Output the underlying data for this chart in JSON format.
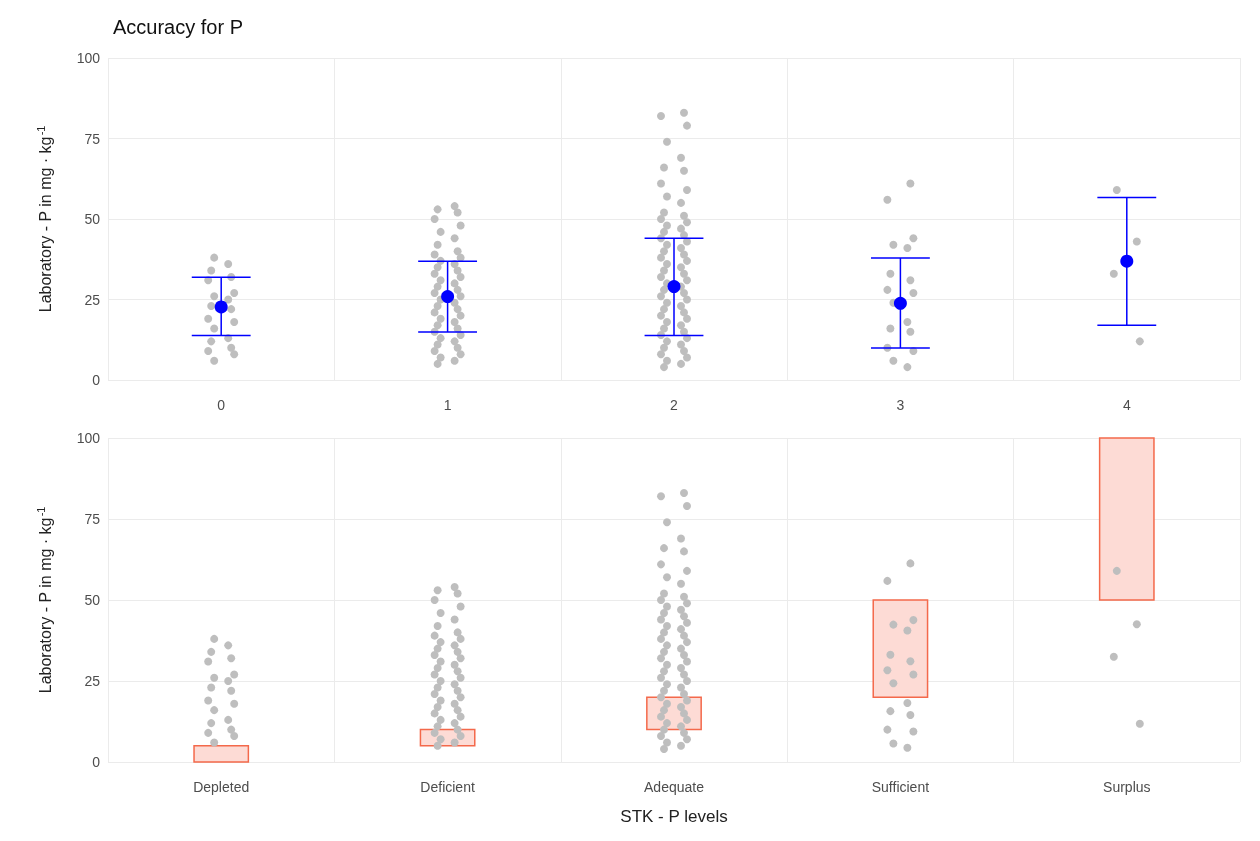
{
  "chart_data": [
    {
      "type": "scatter",
      "title": "Accuracy for P",
      "ylabel": "Laboratory - P in mg · kg$^{-1}$",
      "categories": [
        "0",
        "1",
        "2",
        "3",
        "4"
      ],
      "ylim": [
        0,
        100
      ],
      "yticks": [
        0,
        25,
        50,
        75,
        100
      ],
      "grid": true,
      "marker": "circle",
      "series": [
        {
          "color": "#bebebe",
          "x": [
            "0",
            "0",
            "0",
            "0",
            "0",
            "0",
            "0",
            "0",
            "0",
            "0",
            "0",
            "0",
            "0",
            "0",
            "0",
            "0",
            "0",
            "0",
            "0",
            "1",
            "1",
            "1",
            "1",
            "1",
            "1",
            "1",
            "1",
            "1",
            "1",
            "1",
            "1",
            "1",
            "1",
            "1",
            "1",
            "1",
            "1",
            "1",
            "1",
            "1",
            "1",
            "1",
            "1",
            "1",
            "1",
            "1",
            "1",
            "1",
            "1",
            "1",
            "1",
            "1",
            "1",
            "1",
            "1",
            "1",
            "1",
            "1",
            "1",
            "1",
            "1",
            "1",
            "1",
            "2",
            "2",
            "2",
            "2",
            "2",
            "2",
            "2",
            "2",
            "2",
            "2",
            "2",
            "2",
            "2",
            "2",
            "2",
            "2",
            "2",
            "2",
            "2",
            "2",
            "2",
            "2",
            "2",
            "2",
            "2",
            "2",
            "2",
            "2",
            "2",
            "2",
            "2",
            "2",
            "2",
            "2",
            "2",
            "2",
            "2",
            "2",
            "2",
            "2",
            "2",
            "2",
            "2",
            "2",
            "2",
            "2",
            "2",
            "2",
            "2",
            "2",
            "2",
            "2",
            "2",
            "2",
            "2",
            "2",
            "2",
            "2",
            "2",
            "2",
            "3",
            "3",
            "3",
            "3",
            "3",
            "3",
            "3",
            "3",
            "3",
            "3",
            "3",
            "3",
            "3",
            "3",
            "3",
            "3",
            "3",
            "4",
            "4",
            "4",
            "4"
          ],
          "values": [
            38,
            36,
            34,
            32,
            31,
            27,
            26,
            25,
            23,
            22,
            19,
            18,
            16,
            13,
            12,
            10,
            9,
            8,
            6,
            54,
            53,
            52,
            50,
            48,
            46,
            44,
            42,
            40,
            39,
            38,
            37,
            36,
            35,
            34,
            33,
            32,
            31,
            30,
            29,
            28,
            27,
            26,
            25,
            24,
            23,
            22,
            21,
            20,
            19,
            18,
            17,
            16,
            15,
            14,
            13,
            12,
            11,
            10,
            9,
            8,
            7,
            6,
            5,
            83,
            82,
            79,
            74,
            69,
            66,
            65,
            61,
            59,
            57,
            55,
            52,
            51,
            50,
            49,
            48,
            47,
            46,
            45,
            44,
            43,
            42,
            41,
            40,
            39,
            38,
            37,
            36,
            35,
            34,
            33,
            32,
            31,
            30,
            29,
            28,
            27,
            26,
            25,
            24,
            23,
            22,
            21,
            20,
            19,
            18,
            17,
            16,
            15,
            14,
            13,
            12,
            11,
            10,
            9,
            8,
            7,
            6,
            5,
            4,
            61,
            56,
            44,
            42,
            41,
            33,
            31,
            28,
            27,
            24,
            18,
            16,
            15,
            10,
            9,
            6,
            4,
            59,
            43,
            33,
            12
          ]
        },
        {
          "color": "#0000ff",
          "values": [
            22.7,
            25.9,
            29,
            23.8,
            36.9
          ],
          "errors": [
            [
              13.8,
              31.9
            ],
            [
              14.9,
              36.9
            ],
            [
              13.8,
              44
            ],
            [
              9.9,
              37.9
            ],
            [
              17,
              56.7
            ]
          ]
        }
      ]
    },
    {
      "type": "bar",
      "xlabel": "STK - P levels",
      "ylabel": "Laboratory - P in mg · kg$^{-1}$",
      "categories": [
        "Depleted",
        "Deficient",
        "Adequate",
        "Sufficient",
        "Surplus"
      ],
      "ylim": [
        0,
        100
      ],
      "yticks": [
        0,
        25,
        50,
        75,
        100
      ],
      "grid": true,
      "series": [
        {
          "color": "#fddbd5",
          "base": [
            0,
            5,
            10,
            20,
            50
          ],
          "values": [
            5,
            5,
            10,
            30,
            50
          ]
        },
        {
          "type": "scatter",
          "color": "#bebebe",
          "x": [
            "Depleted",
            "Depleted",
            "Depleted",
            "Depleted",
            "Depleted",
            "Depleted",
            "Depleted",
            "Depleted",
            "Depleted",
            "Depleted",
            "Depleted",
            "Depleted",
            "Depleted",
            "Depleted",
            "Depleted",
            "Depleted",
            "Depleted",
            "Depleted",
            "Depleted",
            "Deficient",
            "Deficient",
            "Deficient",
            "Deficient",
            "Deficient",
            "Deficient",
            "Deficient",
            "Deficient",
            "Deficient",
            "Deficient",
            "Deficient",
            "Deficient",
            "Deficient",
            "Deficient",
            "Deficient",
            "Deficient",
            "Deficient",
            "Deficient",
            "Deficient",
            "Deficient",
            "Deficient",
            "Deficient",
            "Deficient",
            "Deficient",
            "Deficient",
            "Deficient",
            "Deficient",
            "Deficient",
            "Deficient",
            "Deficient",
            "Deficient",
            "Deficient",
            "Deficient",
            "Deficient",
            "Deficient",
            "Deficient",
            "Deficient",
            "Deficient",
            "Deficient",
            "Deficient",
            "Deficient",
            "Deficient",
            "Deficient",
            "Deficient",
            "Adequate",
            "Adequate",
            "Adequate",
            "Adequate",
            "Adequate",
            "Adequate",
            "Adequate",
            "Adequate",
            "Adequate",
            "Adequate",
            "Adequate",
            "Adequate",
            "Adequate",
            "Adequate",
            "Adequate",
            "Adequate",
            "Adequate",
            "Adequate",
            "Adequate",
            "Adequate",
            "Adequate",
            "Adequate",
            "Adequate",
            "Adequate",
            "Adequate",
            "Adequate",
            "Adequate",
            "Adequate",
            "Adequate",
            "Adequate",
            "Adequate",
            "Adequate",
            "Adequate",
            "Adequate",
            "Adequate",
            "Adequate",
            "Adequate",
            "Adequate",
            "Adequate",
            "Adequate",
            "Adequate",
            "Adequate",
            "Adequate",
            "Adequate",
            "Adequate",
            "Adequate",
            "Adequate",
            "Adequate",
            "Adequate",
            "Adequate",
            "Adequate",
            "Adequate",
            "Adequate",
            "Adequate",
            "Adequate",
            "Adequate",
            "Adequate",
            "Adequate",
            "Adequate",
            "Adequate",
            "Sufficient",
            "Sufficient",
            "Sufficient",
            "Sufficient",
            "Sufficient",
            "Sufficient",
            "Sufficient",
            "Sufficient",
            "Sufficient",
            "Sufficient",
            "Sufficient",
            "Sufficient",
            "Sufficient",
            "Sufficient",
            "Sufficient",
            "Sufficient",
            "Sufficient",
            "Surplus",
            "Surplus",
            "Surplus",
            "Surplus"
          ],
          "values": [
            38,
            36,
            34,
            32,
            31,
            27,
            26,
            25,
            23,
            22,
            19,
            18,
            16,
            13,
            12,
            10,
            9,
            8,
            6,
            54,
            53,
            52,
            50,
            48,
            46,
            44,
            42,
            40,
            39,
            38,
            37,
            36,
            35,
            34,
            33,
            32,
            31,
            30,
            29,
            28,
            27,
            26,
            25,
            24,
            23,
            22,
            21,
            20,
            19,
            18,
            17,
            16,
            15,
            14,
            13,
            12,
            11,
            10,
            9,
            8,
            7,
            6,
            5,
            83,
            82,
            79,
            74,
            69,
            66,
            65,
            61,
            59,
            57,
            55,
            52,
            51,
            50,
            49,
            48,
            47,
            46,
            45,
            44,
            43,
            42,
            41,
            40,
            39,
            38,
            37,
            36,
            35,
            34,
            33,
            32,
            31,
            30,
            29,
            28,
            27,
            26,
            25,
            24,
            23,
            22,
            21,
            20,
            19,
            18,
            17,
            16,
            15,
            14,
            13,
            12,
            11,
            10,
            9,
            8,
            7,
            6,
            5,
            4,
            61.3,
            55.9,
            43.8,
            42.4,
            40.6,
            33.1,
            31.1,
            28.3,
            27,
            24.3,
            18.2,
            15.7,
            14.5,
            10,
            9.4,
            5.7,
            4.4,
            59,
            42.5,
            32.5,
            11.8
          ]
        }
      ]
    }
  ]
}
